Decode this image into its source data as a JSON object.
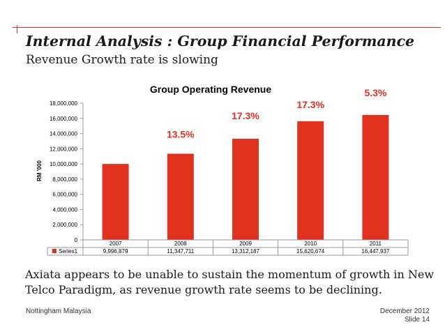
{
  "slide": {
    "title": "Internal Analysis : Group Financial Performance",
    "subtitle": "Revenue Growth rate is slowing",
    "body": "Axiata appears to be unable to sustain the momentum of growth in New Telco Paradigm, as revenue growth rate seems to be declining.",
    "footer_left": "Nottingham Malaysia",
    "footer_date": "December 2012",
    "footer_slide": "Slide 14"
  },
  "colors": {
    "accent": "#E0301E",
    "bar": "#E0301E",
    "growth_label": "#E0301E",
    "text": "#1a1a1a"
  },
  "chart_data": {
    "type": "bar",
    "title": "Group Operating Revenue",
    "xlabel": "",
    "ylabel": "RM '000",
    "ylim": [
      0,
      18000000
    ],
    "y_ticks": [
      0,
      2000000,
      4000000,
      6000000,
      8000000,
      10000000,
      12000000,
      14000000,
      16000000,
      18000000
    ],
    "y_tick_labels": [
      "0",
      "2,000,000",
      "4,000,000",
      "6,000,000",
      "8,000,000",
      "10,000,000",
      "12,000,000",
      "14,000,000",
      "16,000,000",
      "18,000,000"
    ],
    "grid": false,
    "categories": [
      "2007",
      "2008",
      "2009",
      "2010",
      "2011"
    ],
    "series": [
      {
        "name": "Series1",
        "values": [
          9996879,
          11347711,
          13312187,
          15620674,
          16447937
        ],
        "value_labels": [
          "9,996,879",
          "11,347,711",
          "13,312,187",
          "15,620,674",
          "16,447,937"
        ]
      }
    ],
    "annotations": [
      {
        "category": "2008",
        "text": "13.5%"
      },
      {
        "category": "2009",
        "text": "17.3%"
      },
      {
        "category": "2010",
        "text": "17.3%"
      },
      {
        "category": "2011",
        "text": "5.3%"
      }
    ]
  }
}
